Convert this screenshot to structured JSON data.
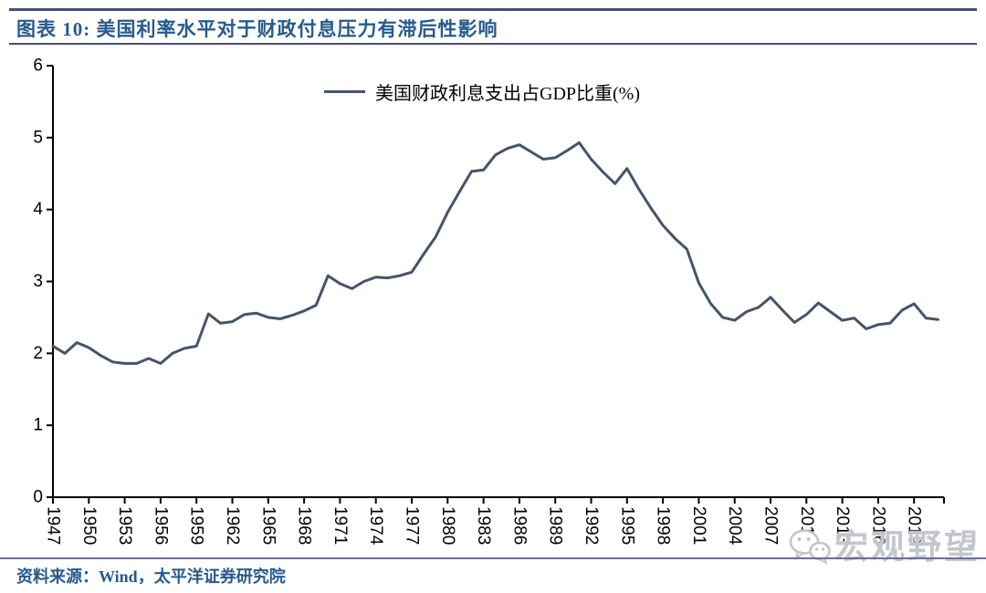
{
  "header": {
    "title": "图表 10:  美国利率水平对于财政付息压力有滞后性影响"
  },
  "legend": {
    "label": "美国财政利息支出占GDP比重(%)"
  },
  "source": {
    "text": "资料来源：Wind，太平洋证券研究院"
  },
  "watermark": {
    "icon": "wechat-icon",
    "text": "宏观野望"
  },
  "colors": {
    "accent_rule": "#474B82",
    "title_text": "#275A8C",
    "series_line": "#44546A",
    "axis": "#000000",
    "tick_label": "#000000",
    "watermark": "#C5C5CF"
  },
  "chart_data": {
    "type": "line",
    "title": "",
    "xlabel": "",
    "ylabel": "",
    "grid": false,
    "legend_position": "top-center",
    "ylim": [
      0,
      6
    ],
    "yticks": [
      0,
      1,
      2,
      3,
      4,
      5,
      6
    ],
    "xticks": [
      1947,
      1950,
      1953,
      1956,
      1959,
      1962,
      1965,
      1968,
      1971,
      1974,
      1977,
      1980,
      1983,
      1986,
      1989,
      1992,
      1995,
      1998,
      2001,
      2004,
      2007,
      2010,
      2013,
      2016,
      2019
    ],
    "x": [
      1947,
      1948,
      1949,
      1950,
      1951,
      1952,
      1953,
      1954,
      1955,
      1956,
      1957,
      1958,
      1959,
      1960,
      1961,
      1962,
      1963,
      1964,
      1965,
      1966,
      1967,
      1968,
      1969,
      1970,
      1971,
      1972,
      1973,
      1974,
      1975,
      1976,
      1977,
      1978,
      1979,
      1980,
      1981,
      1982,
      1983,
      1984,
      1985,
      1986,
      1987,
      1988,
      1989,
      1990,
      1991,
      1992,
      1993,
      1994,
      1995,
      1996,
      1997,
      1998,
      1999,
      2000,
      2001,
      2002,
      2003,
      2004,
      2005,
      2006,
      2007,
      2008,
      2009,
      2010,
      2011,
      2012,
      2013,
      2014,
      2015,
      2016,
      2017,
      2018,
      2019,
      2020,
      2021
    ],
    "series": [
      {
        "name": "美国财政利息支出占GDP比重(%)",
        "values": [
          2.1,
          2.0,
          2.15,
          2.08,
          1.97,
          1.88,
          1.86,
          1.86,
          1.93,
          1.86,
          2.0,
          2.07,
          2.1,
          2.55,
          2.42,
          2.44,
          2.54,
          2.56,
          2.5,
          2.48,
          2.53,
          2.59,
          2.67,
          3.08,
          2.97,
          2.9,
          3.0,
          3.06,
          3.05,
          3.08,
          3.13,
          3.38,
          3.62,
          3.96,
          4.25,
          4.53,
          4.55,
          4.76,
          4.85,
          4.9,
          4.8,
          4.7,
          4.72,
          4.82,
          4.93,
          4.7,
          4.52,
          4.36,
          4.57,
          4.28,
          4.02,
          3.78,
          3.6,
          3.45,
          2.98,
          2.69,
          2.5,
          2.46,
          2.58,
          2.64,
          2.78,
          2.6,
          2.43,
          2.54,
          2.7,
          2.58,
          2.46,
          2.49,
          2.34,
          2.4,
          2.42,
          2.6,
          2.69,
          2.49,
          2.47
        ]
      }
    ]
  }
}
